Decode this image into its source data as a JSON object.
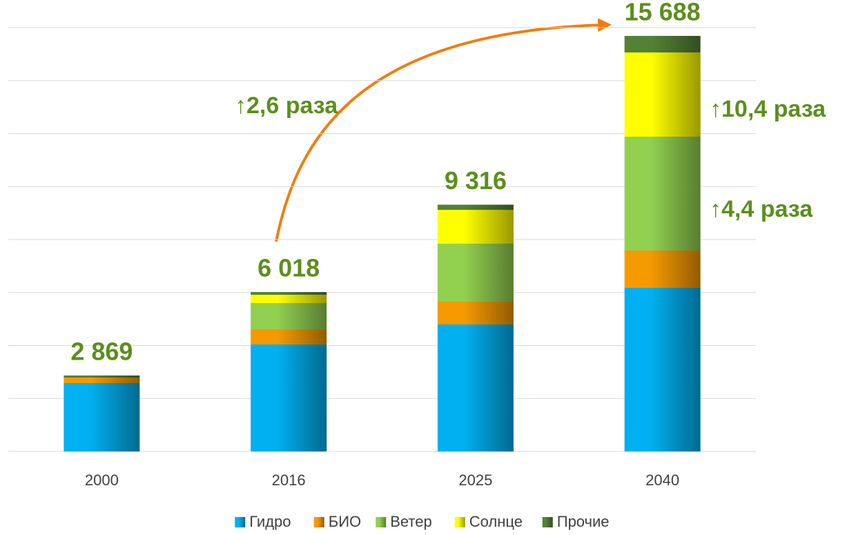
{
  "chart_data": {
    "type": "stacked_bar",
    "categories": [
      "2000",
      "2016",
      "2025",
      "2040"
    ],
    "series": [
      {
        "name": "Гидро",
        "color": "#00b0f0",
        "values": [
          2580,
          4040,
          4795,
          6176
        ]
      },
      {
        "name": "БИО",
        "color": "#f59a00",
        "values": [
          208,
          573,
          860,
          1407
        ]
      },
      {
        "name": "Ветер",
        "color": "#92d050",
        "values": [
          0,
          990,
          2189,
          4300
        ]
      },
      {
        "name": "Солнце",
        "color": "#ffff00",
        "values": [
          0,
          313,
          1277,
          3179
        ]
      },
      {
        "name": "Прочие",
        "color": "#548235",
        "values": [
          81,
          102,
          195,
          626
        ]
      }
    ],
    "totals": [
      2869,
      6018,
      9316,
      15688
    ],
    "total_labels": [
      "2 869",
      "6 018",
      "9 316",
      "15 688"
    ],
    "annotations": [
      "↑2,6 раза",
      "↑10,4 раза",
      "↑4,4 раза"
    ],
    "ylim": [
      0,
      16000
    ],
    "yticks": [
      0,
      2000,
      4000,
      6000,
      8000,
      10000,
      12000,
      14000,
      16000
    ],
    "grid": true,
    "legend": "bottom"
  }
}
